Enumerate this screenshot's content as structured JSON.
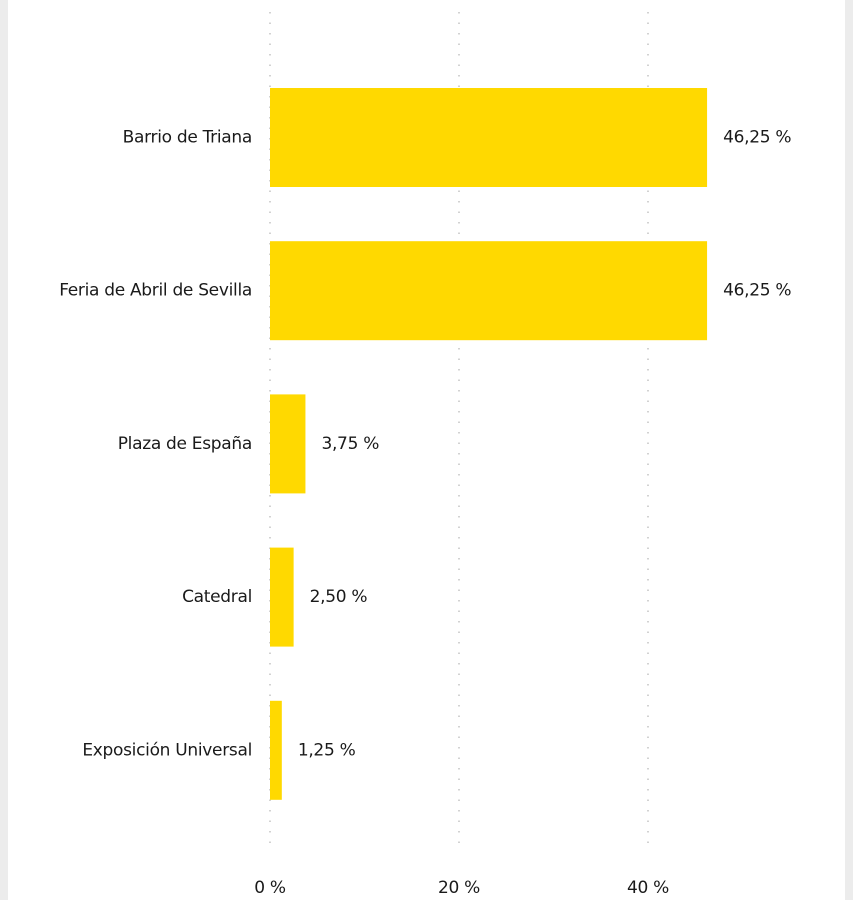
{
  "chart_data": {
    "type": "bar",
    "orientation": "horizontal",
    "categories": [
      "Barrio de Triana",
      "Feria de Abril de Sevilla",
      "Plaza de España",
      "Catedral",
      "Exposición Universal"
    ],
    "values": [
      46.25,
      46.25,
      3.75,
      2.5,
      1.25
    ],
    "value_labels": [
      "46,25 %",
      "46,25 %",
      "3,75 %",
      "2,50 %",
      "1,25 %"
    ],
    "color": "#ffd900",
    "xlim": [
      0,
      60
    ],
    "xticks": [
      {
        "value": 0,
        "label": "0 %"
      },
      {
        "value": 20,
        "label": "20 %"
      },
      {
        "value": 40,
        "label": "40 %"
      }
    ],
    "grid": true
  }
}
